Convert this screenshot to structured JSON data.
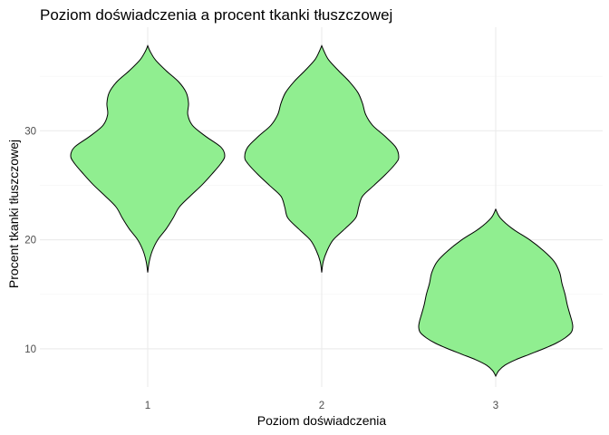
{
  "chart_data": {
    "type": "violin",
    "title": "Poziom doświadczenia a procent tkanki tłuszczowej",
    "xlabel": "Poziom doświadczenia",
    "ylabel": "Procent tkanki tłuszczowej",
    "categories": [
      "1",
      "2",
      "3"
    ],
    "y_ticks": [
      10,
      20,
      30
    ],
    "ylim": [
      6.5,
      39.5
    ],
    "grid": true,
    "fill_color": "#90ee90",
    "outline_color": "#000000",
    "series": [
      {
        "category": "1",
        "y_min": 17.0,
        "y_max": 37.8,
        "profile": [
          [
            17.0,
            0.0
          ],
          [
            18.0,
            0.02
          ],
          [
            19.0,
            0.06
          ],
          [
            20.0,
            0.13
          ],
          [
            21.0,
            0.24
          ],
          [
            22.0,
            0.33
          ],
          [
            23.0,
            0.41
          ],
          [
            24.0,
            0.55
          ],
          [
            25.0,
            0.7
          ],
          [
            26.0,
            0.83
          ],
          [
            27.0,
            0.95
          ],
          [
            27.7,
            1.0
          ],
          [
            28.5,
            0.95
          ],
          [
            29.5,
            0.75
          ],
          [
            30.5,
            0.58
          ],
          [
            31.5,
            0.52
          ],
          [
            32.5,
            0.53
          ],
          [
            33.5,
            0.5
          ],
          [
            34.5,
            0.4
          ],
          [
            35.5,
            0.24
          ],
          [
            36.5,
            0.1
          ],
          [
            37.3,
            0.03
          ],
          [
            37.8,
            0.0
          ]
        ]
      },
      {
        "category": "2",
        "y_min": 17.0,
        "y_max": 37.8,
        "profile": [
          [
            17.0,
            0.0
          ],
          [
            18.0,
            0.02
          ],
          [
            19.0,
            0.07
          ],
          [
            20.0,
            0.15
          ],
          [
            21.0,
            0.3
          ],
          [
            22.0,
            0.44
          ],
          [
            23.0,
            0.48
          ],
          [
            24.0,
            0.53
          ],
          [
            25.0,
            0.68
          ],
          [
            26.0,
            0.83
          ],
          [
            27.0,
            0.96
          ],
          [
            27.6,
            1.0
          ],
          [
            28.5,
            0.96
          ],
          [
            29.5,
            0.82
          ],
          [
            30.5,
            0.66
          ],
          [
            31.5,
            0.57
          ],
          [
            32.5,
            0.53
          ],
          [
            33.5,
            0.47
          ],
          [
            34.5,
            0.36
          ],
          [
            35.5,
            0.22
          ],
          [
            36.5,
            0.09
          ],
          [
            37.3,
            0.03
          ],
          [
            37.8,
            0.0
          ]
        ]
      },
      {
        "category": "3",
        "y_min": 7.5,
        "y_max": 22.8,
        "profile": [
          [
            7.5,
            0.0
          ],
          [
            8.0,
            0.04
          ],
          [
            8.5,
            0.12
          ],
          [
            9.0,
            0.26
          ],
          [
            9.5,
            0.44
          ],
          [
            10.0,
            0.62
          ],
          [
            10.5,
            0.78
          ],
          [
            11.0,
            0.9
          ],
          [
            11.5,
            0.98
          ],
          [
            12.0,
            1.0
          ],
          [
            12.5,
            0.99
          ],
          [
            13.0,
            0.97
          ],
          [
            14.0,
            0.93
          ],
          [
            15.0,
            0.9
          ],
          [
            16.0,
            0.86
          ],
          [
            17.0,
            0.83
          ],
          [
            18.0,
            0.76
          ],
          [
            19.0,
            0.62
          ],
          [
            20.0,
            0.44
          ],
          [
            21.0,
            0.22
          ],
          [
            22.0,
            0.06
          ],
          [
            22.8,
            0.0
          ]
        ]
      }
    ]
  }
}
